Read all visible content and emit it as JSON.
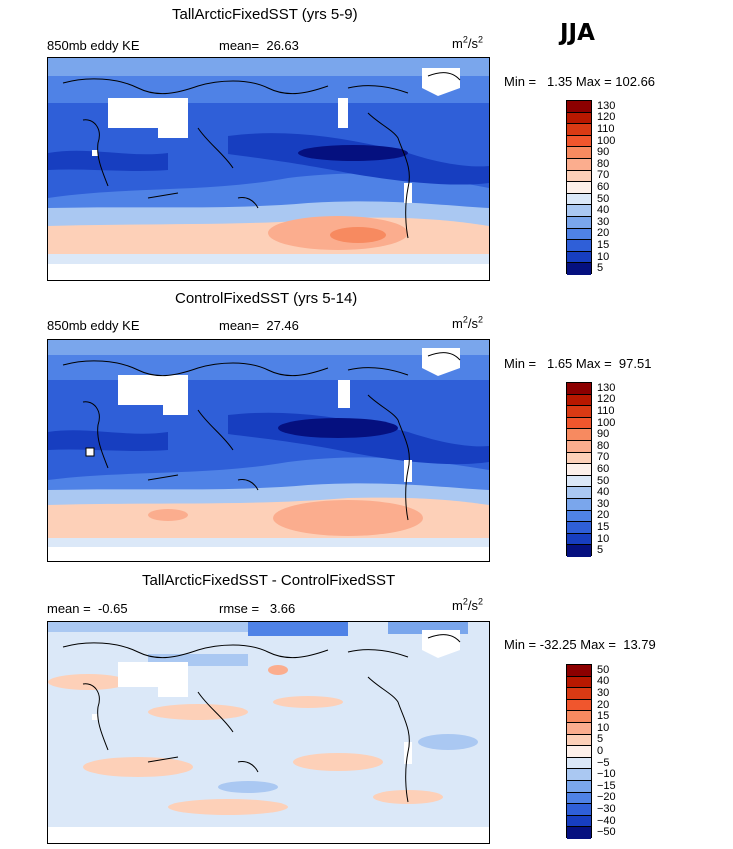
{
  "season": "JJA",
  "panels": [
    {
      "title": "TallArcticFixedSST (yrs 5-9)",
      "variable": "850mb eddy KE",
      "stat1": "mean=  26.63",
      "stat2": "",
      "unit_base": "m",
      "unit_sup1": "2",
      "unit_mid": "/s",
      "unit_sup2": "2",
      "minmax": "Min =   1.35 Max = 102.66",
      "colorbar": {
        "labels": [
          "130",
          "120",
          "110",
          "100",
          "90",
          "80",
          "70",
          "60",
          "50",
          "40",
          "30",
          "20",
          "15",
          "10",
          "5"
        ],
        "colors": [
          "#8c0000",
          "#b81800",
          "#d93a14",
          "#f0562d",
          "#f78a60",
          "#fbad8e",
          "#fdd0b8",
          "#fdf0ea",
          "#dbe8f8",
          "#aac8f2",
          "#7aa6ec",
          "#4f82e6",
          "#2f5fd8",
          "#173ec0",
          "#05107f"
        ]
      }
    },
    {
      "title": "ControlFixedSST (yrs 5-14)",
      "variable": "850mb eddy KE",
      "stat1": "mean=  27.46",
      "stat2": "",
      "unit_base": "m",
      "unit_sup1": "2",
      "unit_mid": "/s",
      "unit_sup2": "2",
      "minmax": "Min =   1.65 Max =  97.51",
      "colorbar": {
        "labels": [
          "130",
          "120",
          "110",
          "100",
          "90",
          "80",
          "70",
          "60",
          "50",
          "40",
          "30",
          "20",
          "15",
          "10",
          "5"
        ],
        "colors": [
          "#8c0000",
          "#b81800",
          "#d93a14",
          "#f0562d",
          "#f78a60",
          "#fbad8e",
          "#fdd0b8",
          "#fdf0ea",
          "#dbe8f8",
          "#aac8f2",
          "#7aa6ec",
          "#4f82e6",
          "#2f5fd8",
          "#173ec0",
          "#05107f"
        ]
      }
    },
    {
      "title": "TallArcticFixedSST - ControlFixedSST",
      "variable": "",
      "stat1": "mean =  -0.65",
      "stat2": "rmse =   3.66",
      "unit_base": "m",
      "unit_sup1": "2",
      "unit_mid": "/s",
      "unit_sup2": "2",
      "minmax": "Min = -32.25 Max =  13.79",
      "colorbar": {
        "labels": [
          "50",
          "40",
          "30",
          "20",
          "15",
          "10",
          "5",
          "0",
          "−5",
          "−10",
          "−15",
          "−20",
          "−30",
          "−40",
          "−50"
        ],
        "colors": [
          "#8c0000",
          "#b81800",
          "#d93a14",
          "#f0562d",
          "#f78a60",
          "#fbad8e",
          "#fdd0b8",
          "#fdf0ea",
          "#dbe8f8",
          "#aac8f2",
          "#7aa6ec",
          "#4f82e6",
          "#2f5fd8",
          "#173ec0",
          "#05107f"
        ]
      }
    }
  ]
}
